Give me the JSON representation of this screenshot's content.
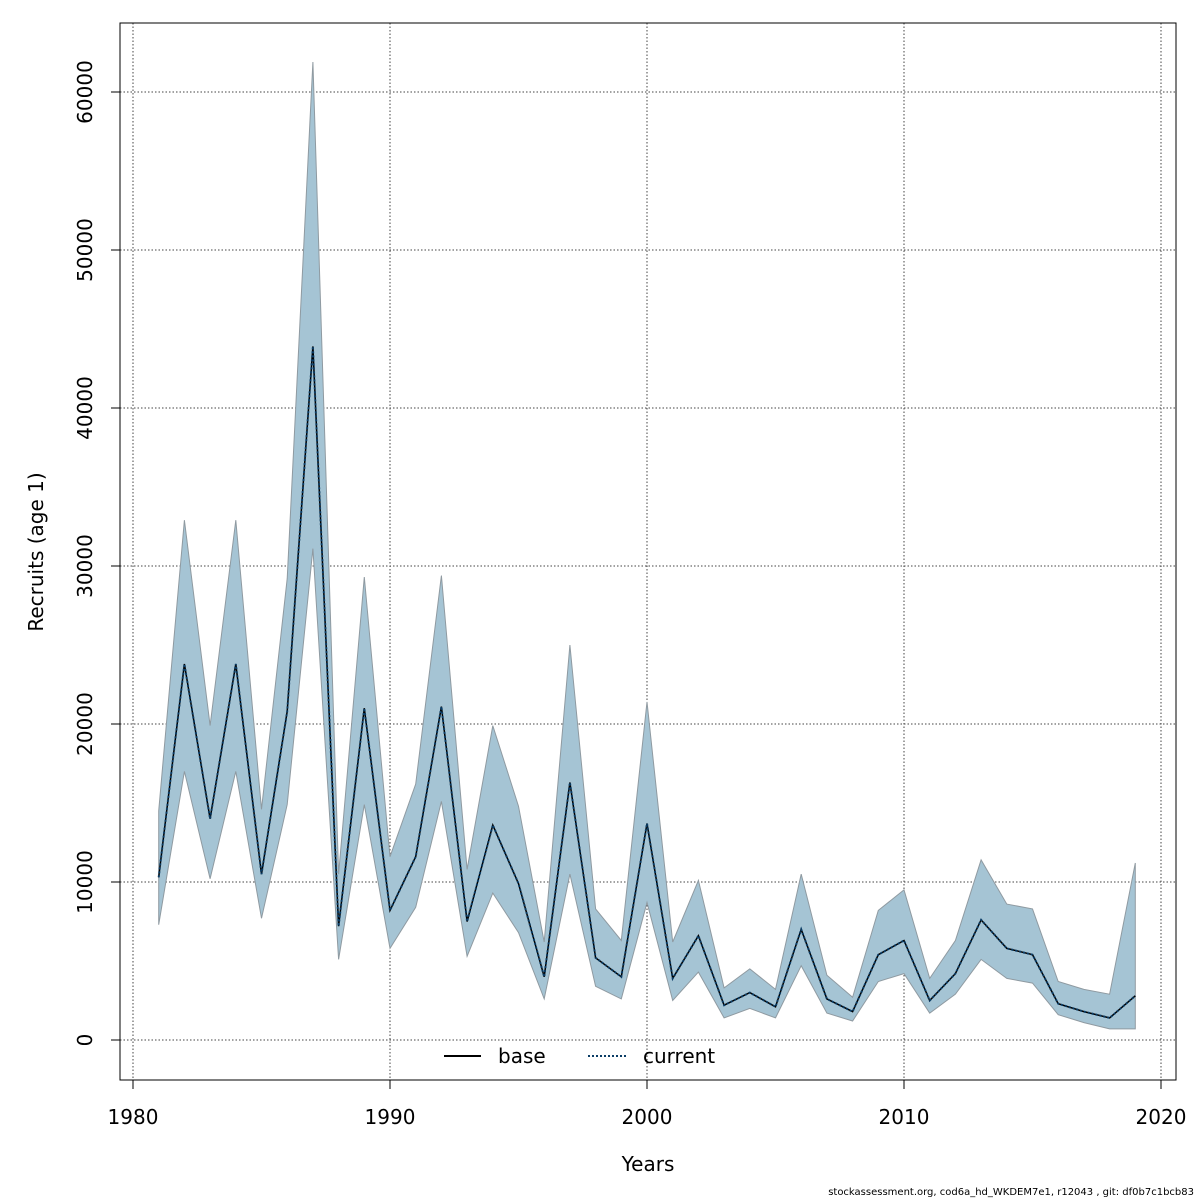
{
  "chart_data": {
    "type": "line",
    "title": "",
    "xlabel": "Years",
    "ylabel": "Recruits (age 1)",
    "xlim": [
      1980,
      2020
    ],
    "ylim": [
      0,
      60000
    ],
    "x_ticks": [
      1980,
      1990,
      2000,
      2010,
      2020
    ],
    "y_ticks": [
      0,
      10000,
      20000,
      30000,
      40000,
      50000,
      60000
    ],
    "grid": true,
    "legend_position": "bottom-center",
    "band_color": "#a5c4d4",
    "x": [
      1981,
      1982,
      1983,
      1984,
      1985,
      1986,
      1987,
      1988,
      1989,
      1990,
      1991,
      1992,
      1993,
      1994,
      1995,
      1996,
      1997,
      1998,
      1999,
      2000,
      2001,
      2002,
      2003,
      2004,
      2005,
      2006,
      2007,
      2008,
      2009,
      2010,
      2011,
      2012,
      2013,
      2014,
      2015,
      2016,
      2017,
      2018,
      2019
    ],
    "band_upper": [
      14500,
      32900,
      19900,
      32900,
      14600,
      29200,
      61900,
      10500,
      29300,
      11600,
      16200,
      29400,
      10800,
      19900,
      14800,
      6200,
      25000,
      8300,
      6300,
      21400,
      6200,
      10100,
      3300,
      4500,
      3200,
      10500,
      4100,
      2700,
      8200,
      9500,
      3900,
      6300,
      11400,
      8600,
      8300,
      3700,
      3200,
      2900,
      11200
    ],
    "band_lower": [
      7300,
      17000,
      10200,
      17000,
      7700,
      14900,
      31100,
      5100,
      14900,
      5800,
      8400,
      15100,
      5300,
      9300,
      6800,
      2600,
      10500,
      3400,
      2600,
      8700,
      2500,
      4300,
      1400,
      2000,
      1400,
      4700,
      1700,
      1200,
      3700,
      4200,
      1700,
      2900,
      5100,
      3900,
      3600,
      1600,
      1100,
      700,
      700
    ],
    "series": [
      {
        "name": "base",
        "color": "#000000",
        "dash": "solid",
        "values": [
          10300,
          23800,
          14000,
          23800,
          10500,
          20800,
          43900,
          7200,
          21000,
          8200,
          11600,
          21100,
          7500,
          13600,
          9900,
          4000,
          16300,
          5200,
          4000,
          13700,
          3900,
          6600,
          2200,
          3000,
          2100,
          7000,
          2600,
          1800,
          5400,
          6300,
          2500,
          4200,
          7600,
          5800,
          5400,
          2300,
          1800,
          1400,
          2800
        ]
      },
      {
        "name": "current",
        "color": "#0b3d66",
        "dash": "dotted",
        "values": [
          10300,
          23800,
          14000,
          23800,
          10500,
          20800,
          43900,
          7200,
          21000,
          8200,
          11600,
          21100,
          7500,
          13600,
          9900,
          4000,
          16300,
          5200,
          4000,
          13700,
          3900,
          6600,
          2200,
          3000,
          2100,
          7000,
          2600,
          1800,
          5400,
          6300,
          2500,
          4200,
          7600,
          5800,
          5400,
          2300,
          1800,
          1400,
          2800
        ]
      }
    ]
  },
  "footer": {
    "text": "stockassessment.org, cod6a_hd_WKDEM7e1, r12043 , git: df0b7c1bcb83"
  }
}
